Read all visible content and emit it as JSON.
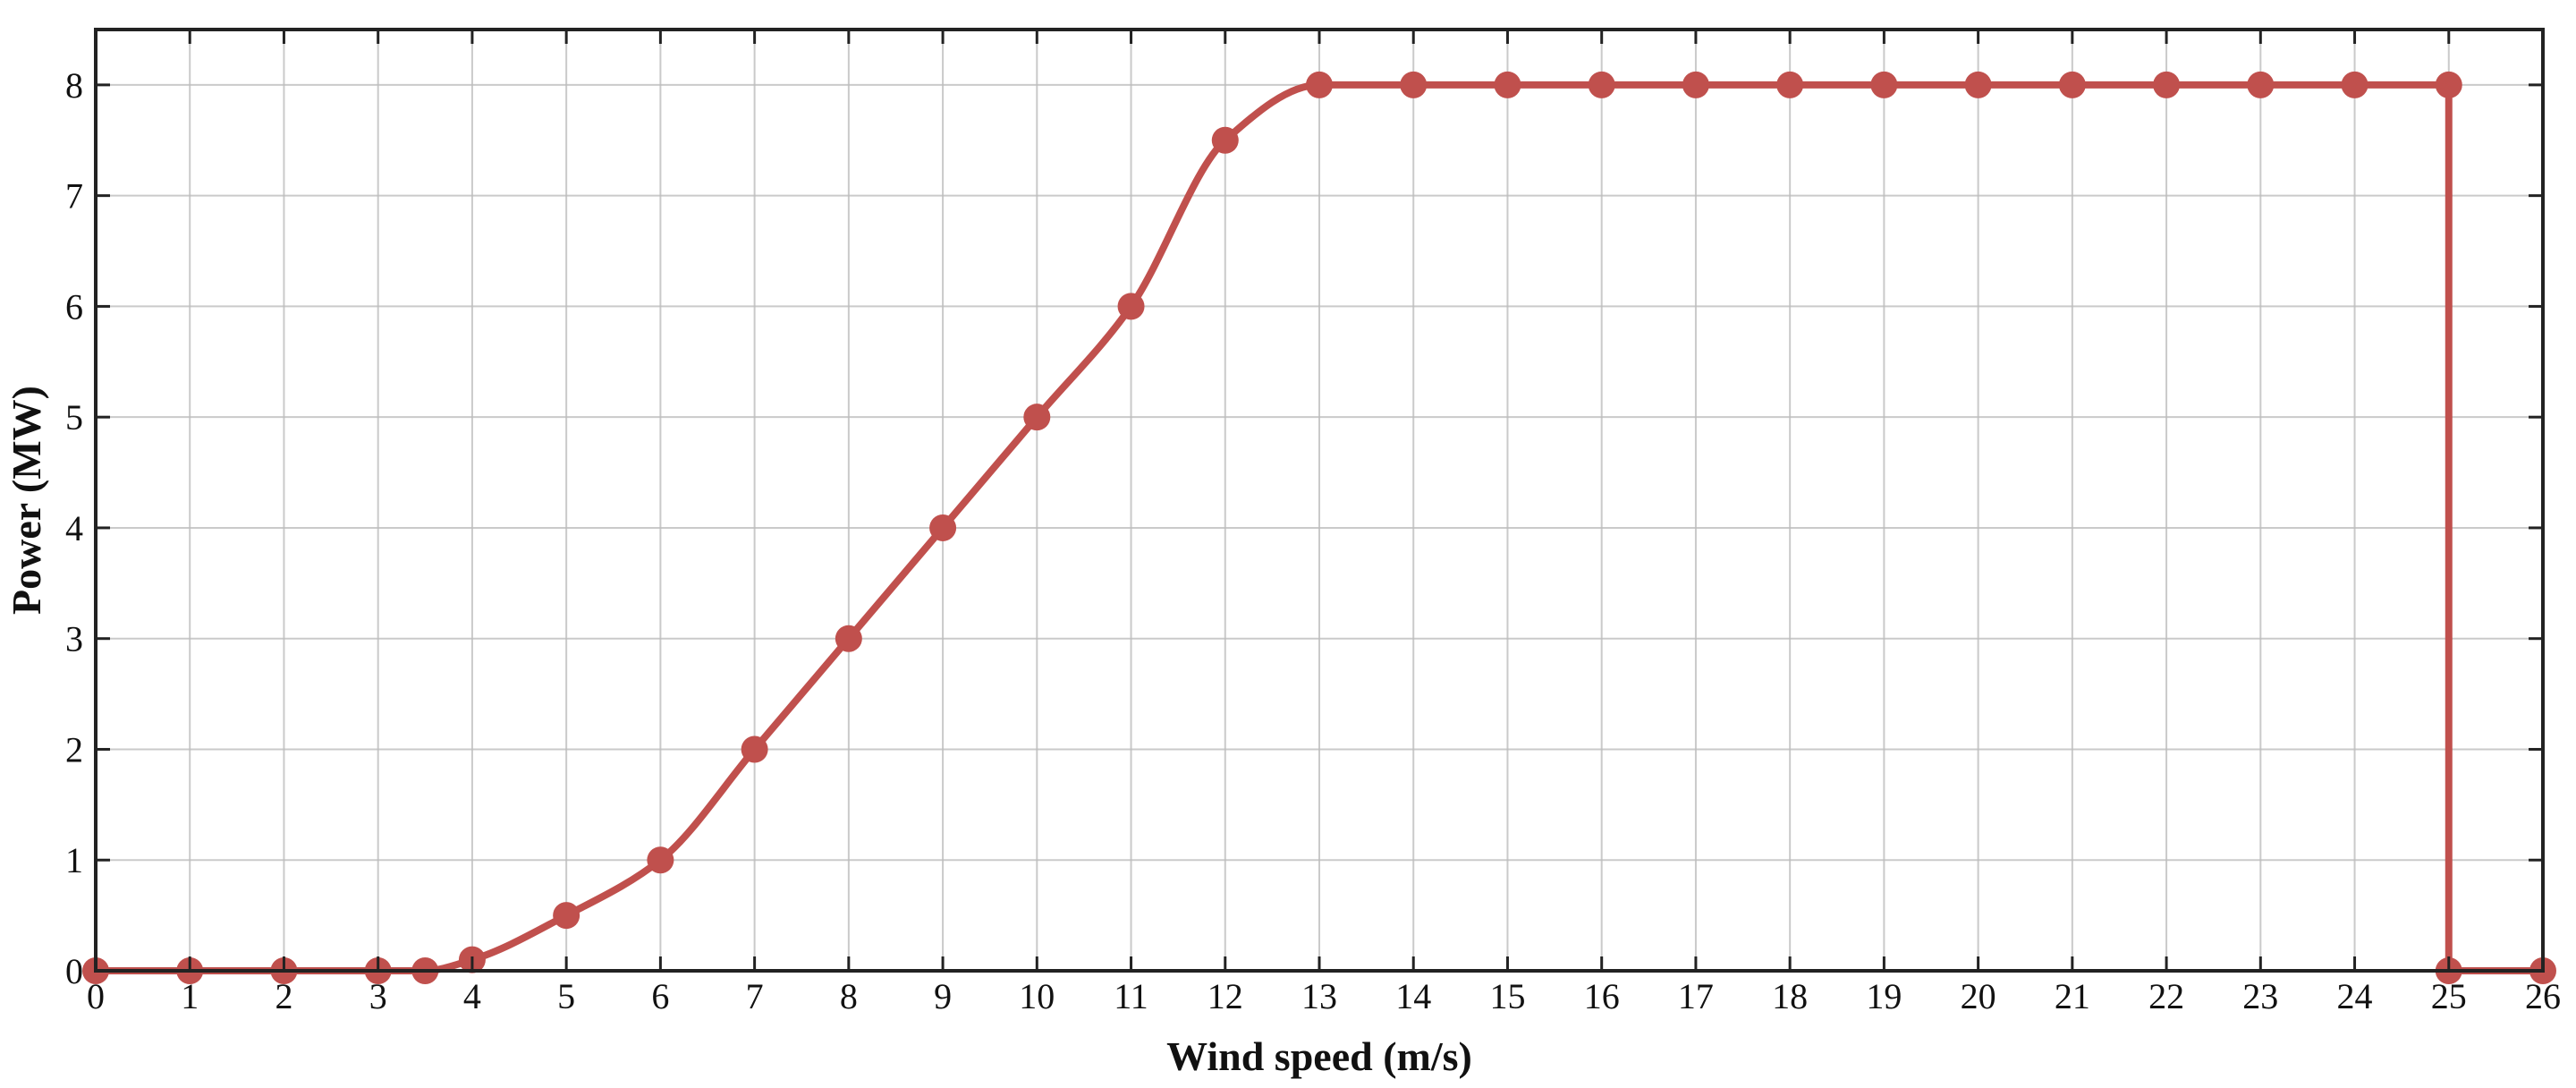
{
  "chart_data": {
    "type": "line",
    "title": "",
    "xlabel": "Wind speed (m/s)",
    "ylabel": "Power (MW)",
    "xlim": [
      0,
      26
    ],
    "ylim": [
      0,
      8.5
    ],
    "xticks": [
      0,
      1,
      2,
      3,
      4,
      5,
      6,
      7,
      8,
      9,
      10,
      11,
      12,
      13,
      14,
      15,
      16,
      17,
      18,
      19,
      20,
      21,
      22,
      23,
      24,
      25,
      26
    ],
    "yticks": [
      0,
      1,
      2,
      3,
      4,
      5,
      6,
      7,
      8
    ],
    "grid": true,
    "legend": "none",
    "series": [
      {
        "color": "#c0504d",
        "marker": "circle",
        "curve": "smooth",
        "x": [
          0,
          1,
          2,
          3,
          3.5,
          4,
          5,
          6,
          7,
          8,
          9,
          10,
          11,
          12,
          13,
          14,
          15,
          16,
          17,
          18,
          19,
          20,
          21,
          22,
          23,
          24,
          25,
          25,
          26
        ],
        "y": [
          0,
          0,
          0,
          0,
          0,
          0.1,
          0.5,
          1,
          2,
          3,
          4,
          5,
          6,
          7.5,
          8,
          8,
          8,
          8,
          8,
          8,
          8,
          8,
          8,
          8,
          8,
          8,
          8,
          0,
          0
        ]
      }
    ]
  }
}
